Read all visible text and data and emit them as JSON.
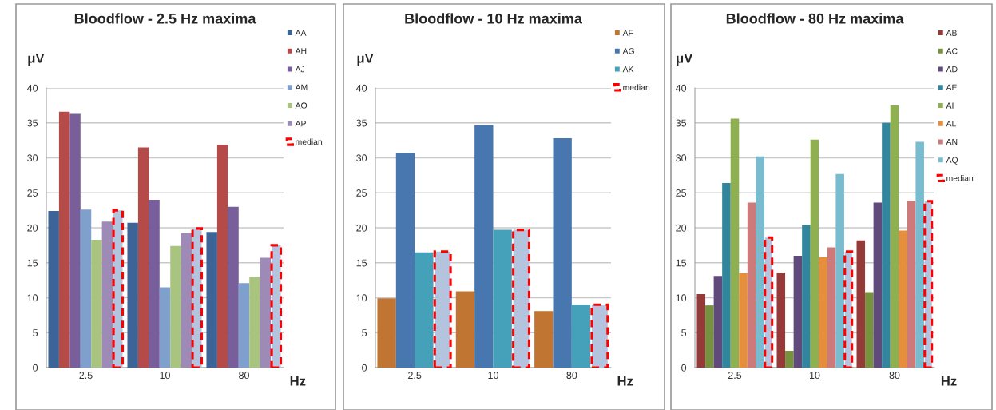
{
  "chart_data": [
    {
      "type": "bar",
      "title": "Bloodflow - 2.5 Hz maxima",
      "ylabel": "μV",
      "xlabel": "Hz",
      "categories": [
        "2.5",
        "10",
        "80"
      ],
      "ylim": [
        0,
        40
      ],
      "yticks": [
        0,
        5,
        10,
        15,
        20,
        25,
        30,
        35,
        40
      ],
      "grid": "y",
      "legend": "right",
      "series": [
        {
          "name": "AA",
          "color": "#3c6496",
          "values": [
            22.4,
            20.7,
            19.4
          ]
        },
        {
          "name": "AH",
          "color": "#b44b48",
          "values": [
            36.6,
            31.5,
            31.9
          ]
        },
        {
          "name": "AJ",
          "color": "#785e9a",
          "values": [
            36.3,
            24.0,
            23.0
          ]
        },
        {
          "name": "AM",
          "color": "#7f9fcd",
          "values": [
            22.6,
            11.5,
            12.1
          ]
        },
        {
          "name": "AO",
          "color": "#a9c47f",
          "values": [
            18.3,
            17.4,
            13.0
          ]
        },
        {
          "name": "AP",
          "color": "#9d8ab7",
          "values": [
            20.9,
            19.2,
            15.7
          ]
        },
        {
          "name": "median",
          "color": "#b4c3de",
          "line_style": "dashed",
          "values": [
            22.5,
            19.9,
            17.5
          ]
        }
      ]
    },
    {
      "type": "bar",
      "title": "Bloodflow - 10 Hz maxima",
      "ylabel": "μV",
      "xlabel": "Hz",
      "categories": [
        "2.5",
        "10",
        "80"
      ],
      "ylim": [
        0,
        40
      ],
      "yticks": [
        0,
        5,
        10,
        15,
        20,
        25,
        30,
        35,
        40
      ],
      "grid": "y",
      "legend": "right",
      "series": [
        {
          "name": "AF",
          "color": "#c07533",
          "values": [
            9.9,
            10.9,
            8.1
          ]
        },
        {
          "name": "AG",
          "color": "#4877b0",
          "values": [
            30.7,
            34.7,
            32.8
          ]
        },
        {
          "name": "AK",
          "color": "#45a1ba",
          "values": [
            16.5,
            19.7,
            9.0
          ]
        },
        {
          "name": "median",
          "color": "#b4c3de",
          "line_style": "dashed",
          "values": [
            16.6,
            19.7,
            9.0
          ]
        }
      ]
    },
    {
      "type": "bar",
      "title": "Bloodflow - 80 Hz maxima",
      "ylabel": "μV",
      "xlabel": "Hz",
      "categories": [
        "2.5",
        "10",
        "80"
      ],
      "ylim": [
        0,
        40
      ],
      "yticks": [
        0,
        5,
        10,
        15,
        20,
        25,
        30,
        35,
        40
      ],
      "grid": "y",
      "legend": "right",
      "series": [
        {
          "name": "AB",
          "color": "#953a38",
          "values": [
            10.5,
            13.6,
            18.2
          ]
        },
        {
          "name": "AC",
          "color": "#77923f",
          "values": [
            8.9,
            2.4,
            10.8
          ]
        },
        {
          "name": "AD",
          "color": "#604a7b",
          "values": [
            13.1,
            16.0,
            23.6
          ]
        },
        {
          "name": "AE",
          "color": "#31859c",
          "values": [
            26.4,
            20.4,
            35.0
          ]
        },
        {
          "name": "AI",
          "color": "#8eb050",
          "values": [
            35.6,
            32.6,
            37.5
          ]
        },
        {
          "name": "AL",
          "color": "#e58e3c",
          "values": [
            13.5,
            15.8,
            19.6
          ]
        },
        {
          "name": "AN",
          "color": "#cc7b7a",
          "values": [
            23.6,
            17.2,
            23.9
          ]
        },
        {
          "name": "AQ",
          "color": "#79bcd0",
          "values": [
            30.2,
            27.7,
            32.3
          ]
        },
        {
          "name": "median",
          "color": "#b4c3de",
          "line_style": "dashed",
          "values": [
            18.6,
            16.6,
            23.8
          ]
        }
      ]
    }
  ]
}
